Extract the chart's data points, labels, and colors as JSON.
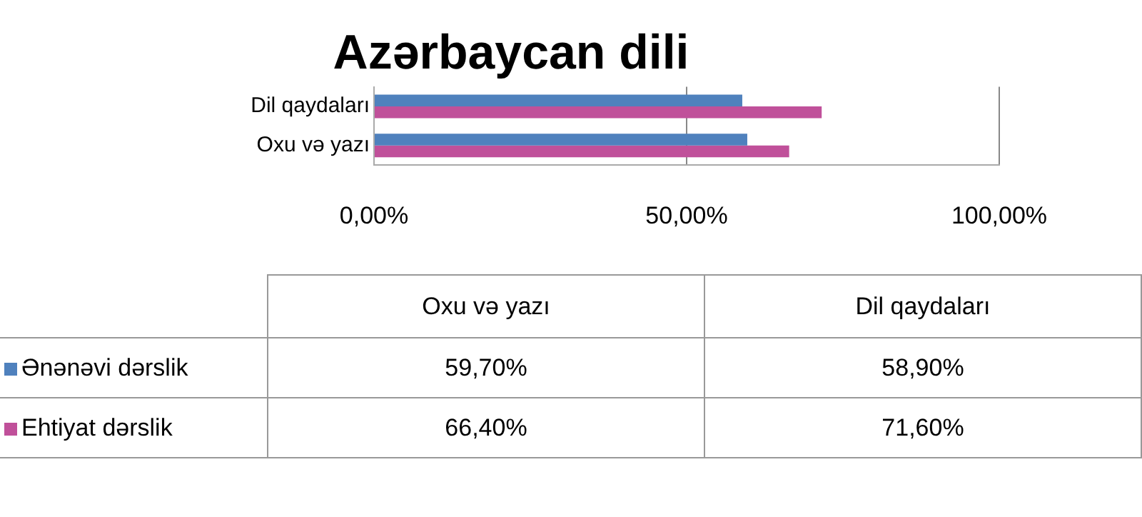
{
  "chart_data": {
    "type": "bar",
    "orientation": "horizontal",
    "title": "Azərbaycan dili",
    "categories": [
      "Dil qaydaları",
      "Oxu və yazı"
    ],
    "series": [
      {
        "name": "Ənənəvi dərslik",
        "color": "#4f81bd",
        "values": [
          58.9,
          59.7
        ]
      },
      {
        "name": "Ehtiyat dərslik",
        "color": "#c0509a",
        "values": [
          71.6,
          66.4
        ]
      }
    ],
    "annotations": [
      "59,70%",
      "58,90%",
      "66,40%",
      "71,60%"
    ],
    "xlim": [
      0,
      100
    ],
    "xticks": [
      {
        "value": 0,
        "label": "0,00%"
      },
      {
        "value": 50,
        "label": "50,00%"
      },
      {
        "value": 100,
        "label": "100,00%"
      }
    ],
    "grid": "x",
    "legend": "bottom"
  }
}
